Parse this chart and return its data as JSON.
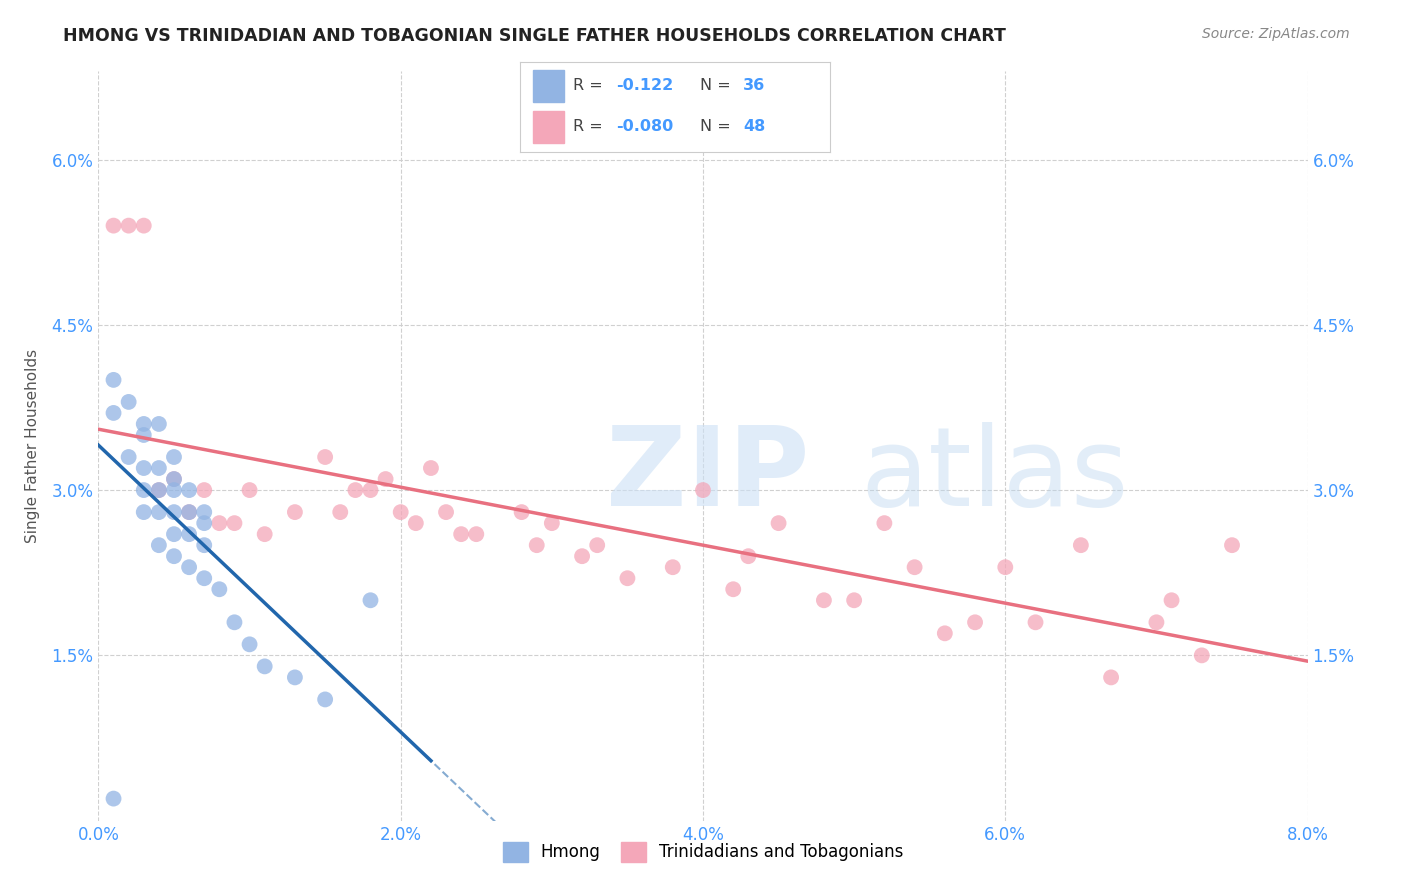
{
  "title": "HMONG VS TRINIDADIAN AND TOBAGONIAN SINGLE FATHER HOUSEHOLDS CORRELATION CHART",
  "source": "Source: ZipAtlas.com",
  "ylabel": "Single Father Households",
  "xlim": [
    0.0,
    0.08
  ],
  "ylim": [
    0.0,
    0.068
  ],
  "xtick_labels": [
    "0.0%",
    "2.0%",
    "4.0%",
    "6.0%",
    "8.0%"
  ],
  "xtick_vals": [
    0.0,
    0.02,
    0.04,
    0.06,
    0.08
  ],
  "ytick_labels": [
    "1.5%",
    "3.0%",
    "4.5%",
    "6.0%"
  ],
  "ytick_vals": [
    0.015,
    0.03,
    0.045,
    0.06
  ],
  "hmong_R": "-0.122",
  "hmong_N": "36",
  "trini_R": "-0.080",
  "trini_N": "48",
  "hmong_color": "#92b4e3",
  "trini_color": "#f4a7b9",
  "hmong_line_color": "#2166ac",
  "trini_line_color": "#e87080",
  "grid_color": "#d0d0d0",
  "background_color": "#ffffff",
  "legend_color": "#4499ff",
  "tick_color": "#4499ff",
  "hmong_x": [
    0.001,
    0.001,
    0.002,
    0.002,
    0.003,
    0.003,
    0.003,
    0.003,
    0.003,
    0.004,
    0.004,
    0.004,
    0.004,
    0.004,
    0.005,
    0.005,
    0.005,
    0.005,
    0.005,
    0.005,
    0.006,
    0.006,
    0.006,
    0.006,
    0.007,
    0.007,
    0.007,
    0.007,
    0.008,
    0.009,
    0.01,
    0.011,
    0.013,
    0.015,
    0.018,
    0.001
  ],
  "hmong_y": [
    0.04,
    0.037,
    0.038,
    0.033,
    0.036,
    0.035,
    0.032,
    0.03,
    0.028,
    0.036,
    0.032,
    0.03,
    0.028,
    0.025,
    0.033,
    0.031,
    0.03,
    0.028,
    0.026,
    0.024,
    0.03,
    0.028,
    0.026,
    0.023,
    0.028,
    0.027,
    0.025,
    0.022,
    0.021,
    0.018,
    0.016,
    0.014,
    0.013,
    0.011,
    0.02,
    0.002
  ],
  "trini_x": [
    0.001,
    0.002,
    0.003,
    0.004,
    0.005,
    0.006,
    0.007,
    0.008,
    0.009,
    0.01,
    0.011,
    0.013,
    0.015,
    0.016,
    0.017,
    0.018,
    0.019,
    0.02,
    0.021,
    0.022,
    0.023,
    0.024,
    0.025,
    0.028,
    0.029,
    0.03,
    0.032,
    0.033,
    0.035,
    0.038,
    0.04,
    0.042,
    0.043,
    0.045,
    0.048,
    0.05,
    0.052,
    0.054,
    0.056,
    0.058,
    0.06,
    0.062,
    0.065,
    0.067,
    0.07,
    0.071,
    0.073,
    0.075
  ],
  "trini_y": [
    0.054,
    0.054,
    0.054,
    0.03,
    0.031,
    0.028,
    0.03,
    0.027,
    0.027,
    0.03,
    0.026,
    0.028,
    0.033,
    0.028,
    0.03,
    0.03,
    0.031,
    0.028,
    0.027,
    0.032,
    0.028,
    0.026,
    0.026,
    0.028,
    0.025,
    0.027,
    0.024,
    0.025,
    0.022,
    0.023,
    0.03,
    0.021,
    0.024,
    0.027,
    0.02,
    0.02,
    0.027,
    0.023,
    0.017,
    0.018,
    0.023,
    0.018,
    0.025,
    0.013,
    0.018,
    0.02,
    0.015,
    0.025
  ],
  "figsize": [
    14.06,
    8.92
  ],
  "dpi": 100
}
